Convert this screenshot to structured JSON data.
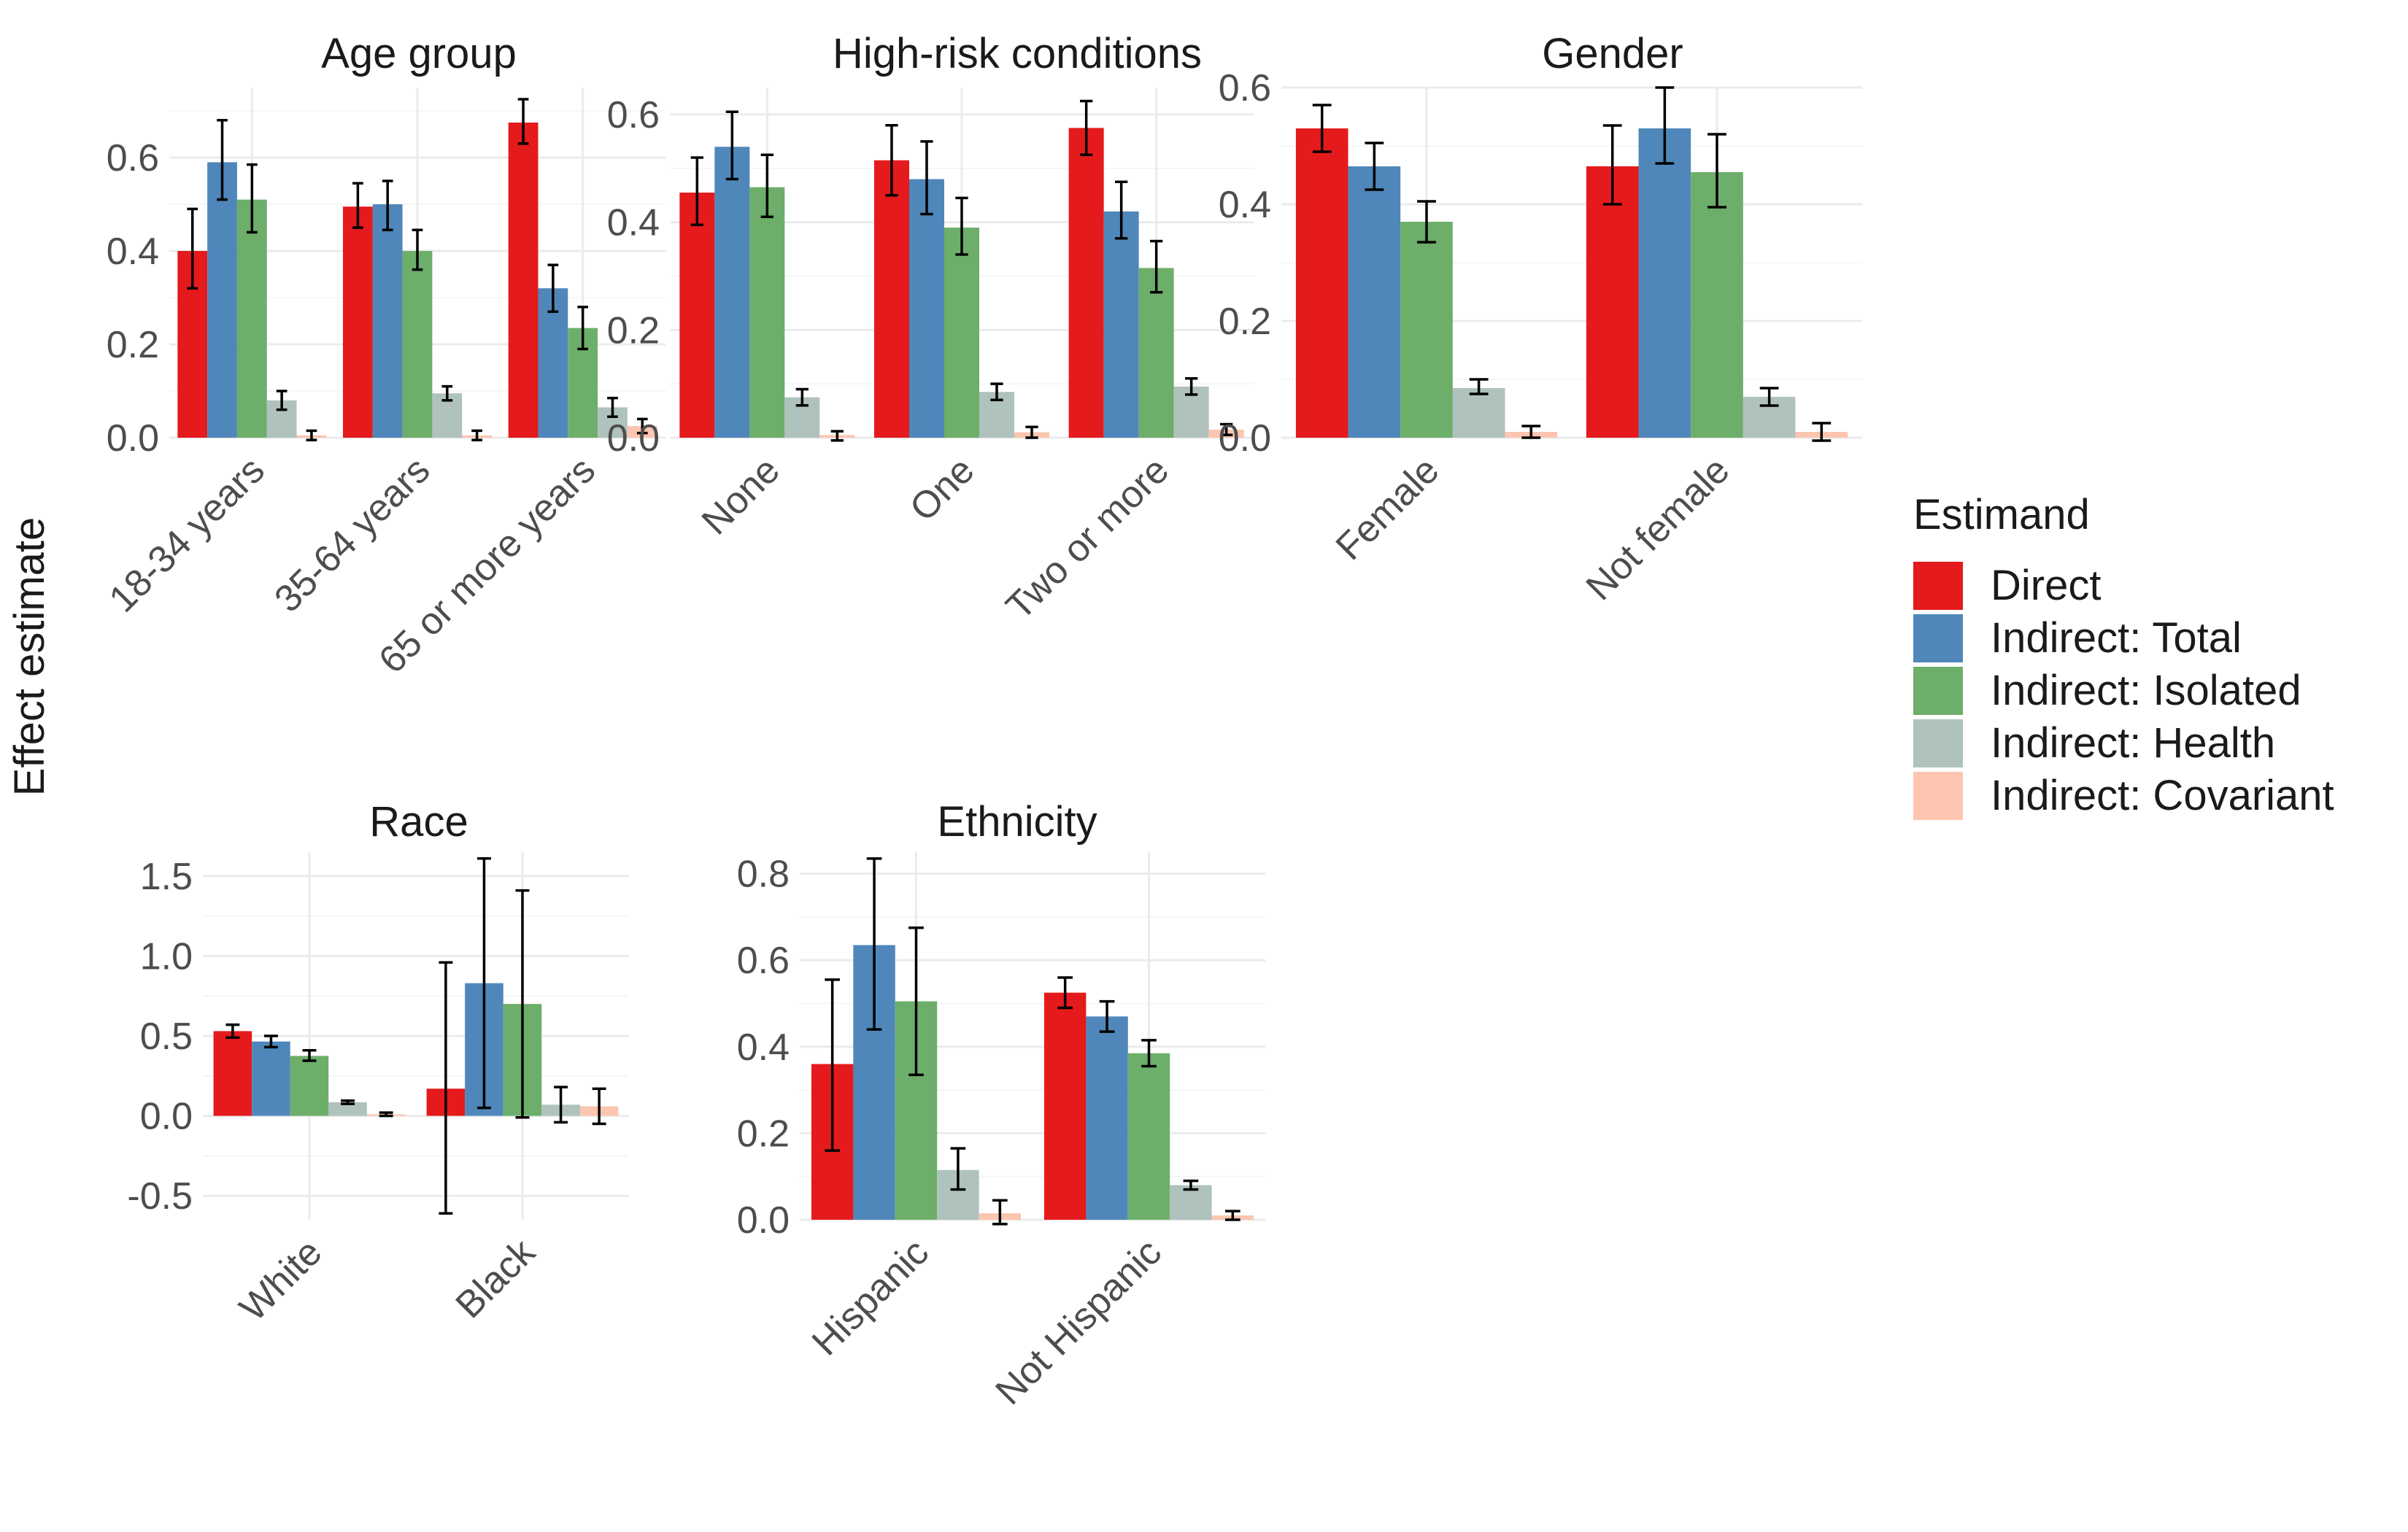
{
  "figure": {
    "y_axis_label": "Effect estimate",
    "legend": {
      "title": "Estimand",
      "position": "right",
      "items": [
        {
          "label": "Direct",
          "color": "#E41A1C"
        },
        {
          "label": "Indirect: Total",
          "color": "#4F87BA"
        },
        {
          "label": "Indirect: Isolated",
          "color": "#6DAE6A"
        },
        {
          "label": "Indirect: Health",
          "color": "#AFC2BD"
        },
        {
          "label": "Indirect: Covariant",
          "color": "#FCC5B0"
        }
      ]
    }
  },
  "chart_data": [
    {
      "type": "bar",
      "title": "Age group",
      "categories": [
        "18-34 years",
        "35-64 years",
        "65 or more years"
      ],
      "ylim": [
        0,
        0.75
      ],
      "yticks": [
        0,
        0.2,
        0.4,
        0.6
      ],
      "ytick_labels": [
        "0.0",
        "0.2",
        "0.4",
        "0.6"
      ],
      "series": [
        {
          "name": "Direct",
          "values": [
            0.4,
            0.495,
            0.675
          ],
          "lower": [
            0.32,
            0.45,
            0.63
          ],
          "upper": [
            0.49,
            0.545,
            0.725
          ]
        },
        {
          "name": "Indirect: Total",
          "values": [
            0.59,
            0.5,
            0.32
          ],
          "lower": [
            0.51,
            0.445,
            0.27
          ],
          "upper": [
            0.68,
            0.55,
            0.37
          ]
        },
        {
          "name": "Indirect: Isolated",
          "values": [
            0.51,
            0.4,
            0.235
          ],
          "lower": [
            0.44,
            0.36,
            0.19
          ],
          "upper": [
            0.585,
            0.445,
            0.28
          ]
        },
        {
          "name": "Indirect: Health",
          "values": [
            0.08,
            0.095,
            0.065
          ],
          "lower": [
            0.06,
            0.08,
            0.045
          ],
          "upper": [
            0.1,
            0.11,
            0.085
          ]
        },
        {
          "name": "Indirect: Covariant",
          "values": [
            0.005,
            0.005,
            0.025
          ],
          "lower": [
            -0.005,
            -0.005,
            0.01
          ],
          "upper": [
            0.015,
            0.015,
            0.04
          ]
        }
      ]
    },
    {
      "type": "bar",
      "title": "High-risk conditions",
      "categories": [
        "None",
        "One",
        "Two or more"
      ],
      "ylim": [
        0,
        0.65
      ],
      "yticks": [
        0,
        0.2,
        0.4,
        0.6
      ],
      "ytick_labels": [
        "0.0",
        "0.2",
        "0.4",
        "0.6"
      ],
      "series": [
        {
          "name": "Direct",
          "values": [
            0.455,
            0.515,
            0.575
          ],
          "lower": [
            0.395,
            0.45,
            0.525
          ],
          "upper": [
            0.52,
            0.58,
            0.625
          ]
        },
        {
          "name": "Indirect: Total",
          "values": [
            0.54,
            0.48,
            0.42
          ],
          "lower": [
            0.48,
            0.415,
            0.37
          ],
          "upper": [
            0.605,
            0.55,
            0.475
          ]
        },
        {
          "name": "Indirect: Isolated",
          "values": [
            0.465,
            0.39,
            0.315
          ],
          "lower": [
            0.41,
            0.34,
            0.27
          ],
          "upper": [
            0.525,
            0.445,
            0.365
          ]
        },
        {
          "name": "Indirect: Health",
          "values": [
            0.075,
            0.085,
            0.095
          ],
          "lower": [
            0.06,
            0.07,
            0.08
          ],
          "upper": [
            0.09,
            0.1,
            0.11
          ]
        },
        {
          "name": "Indirect: Covariant",
          "values": [
            0.005,
            0.01,
            0.015
          ],
          "lower": [
            -0.005,
            0.0,
            0.005
          ],
          "upper": [
            0.012,
            0.02,
            0.025
          ]
        }
      ]
    },
    {
      "type": "bar",
      "title": "Gender",
      "categories": [
        "Female",
        "Not female"
      ],
      "ylim": [
        0,
        0.6
      ],
      "yticks": [
        0,
        0.2,
        0.4,
        0.6
      ],
      "ytick_labels": [
        "0.0",
        "0.2",
        "0.4",
        "0.6"
      ],
      "series": [
        {
          "name": "Direct",
          "values": [
            0.53,
            0.465
          ],
          "lower": [
            0.49,
            0.4
          ],
          "upper": [
            0.57,
            0.535
          ]
        },
        {
          "name": "Indirect: Total",
          "values": [
            0.465,
            0.53
          ],
          "lower": [
            0.425,
            0.47
          ],
          "upper": [
            0.505,
            0.6
          ]
        },
        {
          "name": "Indirect: Isolated",
          "values": [
            0.37,
            0.455
          ],
          "lower": [
            0.335,
            0.395
          ],
          "upper": [
            0.405,
            0.52
          ]
        },
        {
          "name": "Indirect: Health",
          "values": [
            0.085,
            0.07
          ],
          "lower": [
            0.075,
            0.055
          ],
          "upper": [
            0.1,
            0.085
          ]
        },
        {
          "name": "Indirect: Covariant",
          "values": [
            0.01,
            0.01
          ],
          "lower": [
            0.0,
            -0.005
          ],
          "upper": [
            0.02,
            0.025
          ]
        }
      ]
    },
    {
      "type": "bar",
      "title": "Race",
      "categories": [
        "White",
        "Black"
      ],
      "ylim": [
        -0.65,
        1.65
      ],
      "yticks": [
        -0.5,
        0,
        0.5,
        1.0,
        1.5
      ],
      "ytick_labels": [
        "-0.5",
        "0.0",
        "0.5",
        "1.0",
        "1.5"
      ],
      "series": [
        {
          "name": "Direct",
          "values": [
            0.53,
            0.17
          ],
          "lower": [
            0.49,
            -0.61
          ],
          "upper": [
            0.57,
            0.96
          ]
        },
        {
          "name": "Indirect: Total",
          "values": [
            0.465,
            0.83
          ],
          "lower": [
            0.43,
            0.05
          ],
          "upper": [
            0.5,
            1.61
          ]
        },
        {
          "name": "Indirect: Isolated",
          "values": [
            0.375,
            0.7
          ],
          "lower": [
            0.345,
            -0.01
          ],
          "upper": [
            0.41,
            1.41
          ]
        },
        {
          "name": "Indirect: Health",
          "values": [
            0.085,
            0.07
          ],
          "lower": [
            0.075,
            -0.04
          ],
          "upper": [
            0.095,
            0.18
          ]
        },
        {
          "name": "Indirect: Covariant",
          "values": [
            0.01,
            0.06
          ],
          "lower": [
            0.0,
            -0.05
          ],
          "upper": [
            0.02,
            0.17
          ]
        }
      ]
    },
    {
      "type": "bar",
      "title": "Ethnicity",
      "categories": [
        "Hispanic",
        "Not Hispanic"
      ],
      "ylim": [
        0,
        0.85
      ],
      "yticks": [
        0,
        0.2,
        0.4,
        0.6,
        0.8
      ],
      "ytick_labels": [
        "0.0",
        "0.2",
        "0.4",
        "0.6",
        "0.8"
      ],
      "series": [
        {
          "name": "Direct",
          "values": [
            0.36,
            0.525
          ],
          "lower": [
            0.16,
            0.49
          ],
          "upper": [
            0.555,
            0.56
          ]
        },
        {
          "name": "Indirect: Total",
          "values": [
            0.635,
            0.47
          ],
          "lower": [
            0.44,
            0.435
          ],
          "upper": [
            0.835,
            0.505
          ]
        },
        {
          "name": "Indirect: Isolated",
          "values": [
            0.505,
            0.385
          ],
          "lower": [
            0.335,
            0.355
          ],
          "upper": [
            0.675,
            0.415
          ]
        },
        {
          "name": "Indirect: Health",
          "values": [
            0.115,
            0.08
          ],
          "lower": [
            0.07,
            0.07
          ],
          "upper": [
            0.165,
            0.09
          ]
        },
        {
          "name": "Indirect: Covariant",
          "values": [
            0.015,
            0.01
          ],
          "lower": [
            -0.01,
            0.0
          ],
          "upper": [
            0.045,
            0.02
          ]
        }
      ]
    }
  ]
}
